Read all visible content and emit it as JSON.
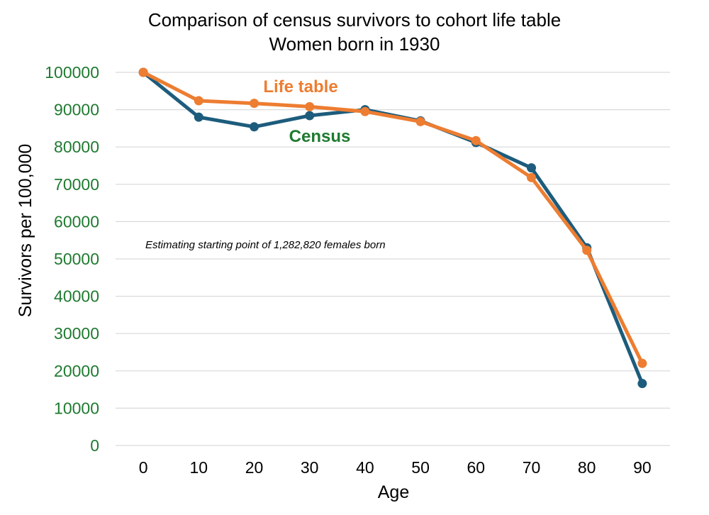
{
  "chart_data": {
    "type": "line",
    "title": "Comparison of census survivors to cohort life table",
    "subtitle": "Women born in 1930",
    "xlabel": "Age",
    "ylabel": "Survivors per 100,000",
    "x": [
      0,
      10,
      20,
      30,
      40,
      50,
      60,
      70,
      80,
      90
    ],
    "x_tick_labels": [
      "0",
      "10",
      "20",
      "30",
      "40",
      "50",
      "60",
      "70",
      "80",
      "90"
    ],
    "y_tick_labels": [
      "0",
      "10000",
      "20000",
      "30000",
      "40000",
      "50000",
      "60000",
      "70000",
      "80000",
      "90000",
      "100000"
    ],
    "ylim": [
      0,
      100000
    ],
    "grid": true,
    "series": [
      {
        "name": "Census",
        "color": "#1d5c7c",
        "label_color": "#1f7a30",
        "values": [
          100000,
          88000,
          85400,
          88400,
          90000,
          87000,
          81200,
          74400,
          53000,
          16600
        ]
      },
      {
        "name": "Life table",
        "color": "#ed7d31",
        "label_color": "#ed7d31",
        "values": [
          100000,
          92400,
          91700,
          90800,
          89500,
          86800,
          81700,
          71800,
          52300,
          22000
        ]
      }
    ],
    "annotation": "Estimating starting point of 1,282,820 females born"
  }
}
